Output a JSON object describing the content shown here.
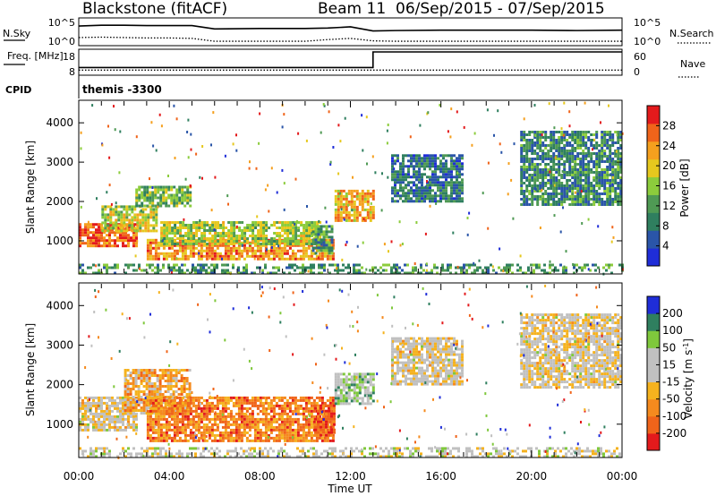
{
  "header": {
    "station": "Blackstone (fitACF)",
    "beam": "Beam 11",
    "date_range": "06/Sep/2015 - 07/Sep/2015"
  },
  "colors": {
    "power_scale": [
      "#1f2dd8",
      "#2a55a8",
      "#2f7f5f",
      "#4f9a54",
      "#8ccc3c",
      "#e6c81e",
      "#f5a01e",
      "#f0641a",
      "#e31a1c"
    ],
    "velocity_scale": [
      "#e31a1c",
      "#f0641a",
      "#f58a1e",
      "#f5b21e",
      "#c0c0c0",
      "#c0c0c0",
      "#7fc83c",
      "#2f7f5f",
      "#1f2dd8"
    ]
  },
  "chart_data": [
    {
      "type": "line",
      "panel": "sky-search-noise",
      "left_label": "N.Sky",
      "right_label": "N.Search",
      "left_ticks": [
        "10^5",
        "10^0"
      ],
      "right_ticks": [
        "10^5",
        "10^0"
      ],
      "log_scale": true,
      "series": [
        {
          "name": "N.Sky",
          "style": "solid",
          "x_hours": [
            0,
            1,
            2,
            3,
            4,
            5,
            5.5,
            6,
            8,
            10,
            11,
            12,
            13,
            14,
            16,
            18,
            20,
            22,
            24
          ],
          "log10": [
            3.9,
            4.1,
            4.1,
            4.0,
            4.0,
            4.0,
            3.6,
            3.2,
            3.3,
            3.3,
            3.4,
            3.7,
            2.7,
            2.8,
            2.9,
            2.9,
            2.9,
            2.8,
            2.9
          ]
        },
        {
          "name": "N.Search",
          "style": "dotted",
          "x_hours": [
            0,
            1,
            2,
            3,
            4,
            5,
            6,
            10,
            11,
            12,
            13,
            14,
            18,
            24
          ],
          "log10": [
            1.1,
            1.2,
            1.1,
            1.0,
            1.0,
            0.9,
            0.2,
            0.2,
            0.6,
            0.9,
            0.3,
            0.2,
            0.2,
            0.2
          ]
        }
      ]
    },
    {
      "type": "line",
      "panel": "frequency-nave",
      "left_label": "Freq. [MHz]",
      "right_label": "Nave",
      "left_ticks": [
        "18",
        "8"
      ],
      "right_ticks": [
        "60",
        "0"
      ],
      "series": [
        {
          "name": "Freq.",
          "style": "solid",
          "x_hours": [
            0,
            13,
            13,
            24
          ],
          "values": [
            10.4,
            10.4,
            18,
            18
          ]
        },
        {
          "name": "Nave",
          "style": "dotted",
          "x_hours": [
            0,
            24
          ],
          "values": [
            7,
            7
          ]
        }
      ]
    },
    {
      "type": "text",
      "panel": "cpid",
      "label": "CPID",
      "value": "themis -3300"
    },
    {
      "type": "heatmap",
      "panel": "power",
      "ylabel": "Slant Range [km]",
      "xlabel": "",
      "xlim": [
        0,
        24
      ],
      "ylim": [
        180,
        4550
      ],
      "yticks": [
        "1000",
        "2000",
        "3000",
        "4000"
      ],
      "colorbar": {
        "label": "Power [dB]",
        "ticks": [
          "4",
          "8",
          "12",
          "16",
          "20",
          "24",
          "28"
        ],
        "range": [
          0,
          32
        ]
      },
      "regions": [
        {
          "t0": 0.0,
          "t1": 2.6,
          "r0": 850,
          "r1": 1450,
          "level": 0.85
        },
        {
          "t0": 1.0,
          "t1": 3.4,
          "r0": 1250,
          "r1": 1900,
          "level": 0.55
        },
        {
          "t0": 2.5,
          "t1": 4.9,
          "r0": 1900,
          "r1": 2400,
          "level": 0.45
        },
        {
          "t0": 3.0,
          "t1": 11.3,
          "r0": 550,
          "r1": 1050,
          "level": 0.75
        },
        {
          "t0": 3.6,
          "t1": 10.6,
          "r0": 950,
          "r1": 1500,
          "level": 0.5
        },
        {
          "t0": 10.3,
          "t1": 11.2,
          "r0": 700,
          "r1": 1400,
          "level": 0.35
        },
        {
          "t0": 11.3,
          "t1": 13.0,
          "r0": 1500,
          "r1": 2300,
          "level": 0.7
        },
        {
          "t0": 13.8,
          "t1": 17.0,
          "r0": 2000,
          "r1": 3200,
          "level": 0.25
        },
        {
          "t0": 19.5,
          "t1": 24.0,
          "r0": 1900,
          "r1": 3800,
          "level": 0.3
        },
        {
          "t0": 0.0,
          "t1": 24.0,
          "r0": 180,
          "r1": 420,
          "level": 0.35
        }
      ]
    },
    {
      "type": "heatmap",
      "panel": "velocity",
      "ylabel": "Slant Range [km]",
      "xlabel": "Time UT",
      "xlim": [
        0,
        24
      ],
      "ylim": [
        180,
        4550
      ],
      "yticks": [
        "1000",
        "2000",
        "3000",
        "4000"
      ],
      "xticks": [
        "00:00",
        "04:00",
        "08:00",
        "12:00",
        "16:00",
        "20:00",
        "00:00"
      ],
      "colorbar": {
        "label": "Velocity [m s^-1]",
        "ticks": [
          "-200",
          "-100",
          "-50",
          "-15",
          "15",
          "50",
          "100",
          "200"
        ],
        "range": [
          -250,
          250
        ]
      },
      "regions": [
        {
          "t0": 0.0,
          "t1": 2.6,
          "r0": 850,
          "r1": 1700,
          "level": 0.5
        },
        {
          "t0": 2.0,
          "t1": 4.9,
          "r0": 1300,
          "r1": 2400,
          "level": 0.35
        },
        {
          "t0": 3.0,
          "t1": 11.3,
          "r0": 550,
          "r1": 1700,
          "level": 0.25
        },
        {
          "t0": 10.4,
          "t1": 11.3,
          "r0": 700,
          "r1": 1500,
          "level": 0.15
        },
        {
          "t0": 11.3,
          "t1": 13.0,
          "r0": 1500,
          "r1": 2300,
          "level": 0.65
        },
        {
          "t0": 13.8,
          "t1": 17.0,
          "r0": 2000,
          "r1": 3200,
          "level": 0.5
        },
        {
          "t0": 19.5,
          "t1": 24.0,
          "r0": 1900,
          "r1": 3800,
          "level": 0.5
        },
        {
          "t0": 0.0,
          "t1": 24.0,
          "r0": 180,
          "r1": 420,
          "level": 0.55
        }
      ]
    }
  ]
}
